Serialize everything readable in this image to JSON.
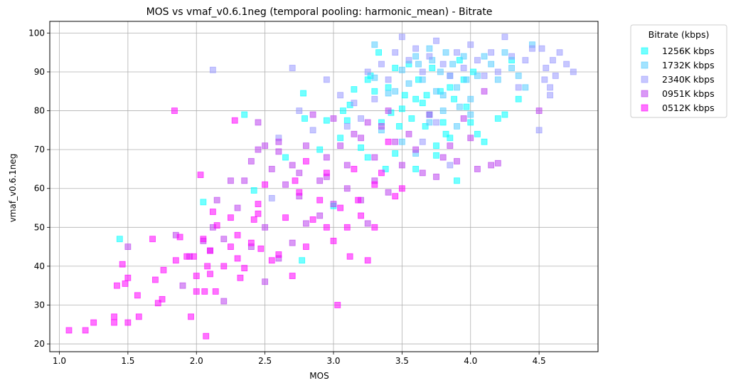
{
  "chart_data": {
    "type": "scatter",
    "title": "MOS vs vmaf_v0.6.1neg (temporal pooling: harmonic_mean) - Bitrate",
    "xlabel": "MOS",
    "ylabel": "vmaf_v0.6.1neg",
    "xlim": [
      0.93,
      4.93
    ],
    "ylim": [
      18,
      103
    ],
    "x_ticks": [
      "1.0",
      "1.5",
      "2.0",
      "2.5",
      "3.0",
      "3.5",
      "4.0",
      "4.5"
    ],
    "y_ticks": [
      "20",
      "30",
      "40",
      "50",
      "60",
      "70",
      "80",
      "90",
      "100"
    ],
    "grid": true,
    "legend_title": "Bitrate (kbps)",
    "legend_position": "outside-top-right",
    "series": [
      {
        "name": "1256K kbps",
        "color": "#00ffff",
        "points": [
          [
            1.44,
            47
          ],
          [
            2.05,
            56.5
          ],
          [
            2.35,
            79
          ],
          [
            2.42,
            59.5
          ],
          [
            2.65,
            68
          ],
          [
            2.78,
            84.5
          ],
          [
            2.79,
            78
          ],
          [
            2.77,
            41.5
          ],
          [
            2.9,
            70
          ],
          [
            2.95,
            77.5
          ],
          [
            3.0,
            55.5
          ],
          [
            3.05,
            73
          ],
          [
            3.07,
            80
          ],
          [
            3.1,
            77.5
          ],
          [
            3.12,
            81.5
          ],
          [
            3.15,
            85.5
          ],
          [
            3.2,
            70.5
          ],
          [
            3.25,
            68
          ],
          [
            3.27,
            89
          ],
          [
            3.3,
            85
          ],
          [
            3.35,
            77
          ],
          [
            3.38,
            65
          ],
          [
            3.4,
            86
          ],
          [
            3.42,
            79.5
          ],
          [
            3.45,
            69
          ],
          [
            3.48,
            76
          ],
          [
            3.5,
            80.5
          ],
          [
            3.52,
            84
          ],
          [
            3.55,
            92
          ],
          [
            3.57,
            78
          ],
          [
            3.6,
            65
          ],
          [
            3.62,
            88
          ],
          [
            3.65,
            82
          ],
          [
            3.67,
            76
          ],
          [
            3.7,
            79
          ],
          [
            3.72,
            91
          ],
          [
            3.75,
            68.5
          ],
          [
            3.78,
            85
          ],
          [
            3.8,
            77
          ],
          [
            3.82,
            74
          ],
          [
            3.85,
            86
          ],
          [
            3.88,
            83
          ],
          [
            3.9,
            62
          ],
          [
            3.92,
            93
          ],
          [
            3.95,
            88
          ],
          [
            3.97,
            81
          ],
          [
            4.0,
            77
          ],
          [
            4.02,
            90
          ],
          [
            4.05,
            74
          ],
          [
            4.1,
            72
          ],
          [
            4.2,
            78
          ],
          [
            4.25,
            79
          ],
          [
            4.3,
            93
          ],
          [
            4.35,
            83
          ],
          [
            3.25,
            88
          ],
          [
            3.33,
            95
          ],
          [
            3.45,
            91
          ],
          [
            3.6,
            83
          ],
          [
            3.68,
            84
          ],
          [
            3.75,
            71
          ],
          [
            3.85,
            73
          ]
        ]
      },
      {
        "name": "1732K kbps",
        "color": "#55ccff",
        "points": [
          [
            3.3,
            88.5
          ],
          [
            3.3,
            97
          ],
          [
            3.4,
            84.5
          ],
          [
            3.45,
            85
          ],
          [
            3.5,
            90.5
          ],
          [
            3.55,
            87
          ],
          [
            3.6,
            94
          ],
          [
            3.62,
            92
          ],
          [
            3.65,
            88
          ],
          [
            3.7,
            96
          ],
          [
            3.72,
            93
          ],
          [
            3.75,
            85
          ],
          [
            3.78,
            90
          ],
          [
            3.8,
            84
          ],
          [
            3.82,
            95
          ],
          [
            3.85,
            89
          ],
          [
            3.87,
            92
          ],
          [
            3.9,
            86
          ],
          [
            3.92,
            81
          ],
          [
            3.95,
            94
          ],
          [
            3.97,
            88
          ],
          [
            4.0,
            83
          ],
          [
            4.05,
            89
          ],
          [
            4.1,
            94
          ],
          [
            4.15,
            92
          ],
          [
            4.2,
            88
          ],
          [
            4.25,
            95
          ],
          [
            4.3,
            91
          ],
          [
            4.35,
            89
          ],
          [
            4.4,
            86
          ],
          [
            4.45,
            97
          ],
          [
            3.35,
            75
          ],
          [
            3.5,
            72
          ],
          [
            3.6,
            69
          ],
          [
            3.7,
            77
          ],
          [
            3.8,
            80
          ],
          [
            3.9,
            76
          ],
          [
            4.0,
            79
          ]
        ]
      },
      {
        "name": "2340K kbps",
        "color": "#9999ff",
        "points": [
          [
            2.12,
            90.5
          ],
          [
            2.55,
            57.5
          ],
          [
            2.6,
            73
          ],
          [
            2.7,
            91
          ],
          [
            2.75,
            80
          ],
          [
            2.85,
            75
          ],
          [
            2.95,
            88
          ],
          [
            3.05,
            84
          ],
          [
            3.1,
            76
          ],
          [
            3.15,
            82
          ],
          [
            3.2,
            78
          ],
          [
            3.25,
            90
          ],
          [
            3.3,
            83
          ],
          [
            3.35,
            92
          ],
          [
            3.4,
            88
          ],
          [
            3.45,
            95
          ],
          [
            3.5,
            99
          ],
          [
            3.55,
            93
          ],
          [
            3.6,
            96
          ],
          [
            3.65,
            90
          ],
          [
            3.7,
            94
          ],
          [
            3.75,
            98
          ],
          [
            3.8,
            92
          ],
          [
            3.85,
            89
          ],
          [
            3.9,
            95
          ],
          [
            3.95,
            91
          ],
          [
            4.0,
            97
          ],
          [
            4.05,
            93
          ],
          [
            4.1,
            89
          ],
          [
            4.15,
            95
          ],
          [
            4.2,
            90
          ],
          [
            4.25,
            99
          ],
          [
            4.3,
            94
          ],
          [
            4.35,
            86
          ],
          [
            4.4,
            93
          ],
          [
            4.45,
            96
          ],
          [
            4.5,
            75
          ],
          [
            4.52,
            96
          ],
          [
            4.55,
            91
          ],
          [
            4.58,
            86
          ],
          [
            4.6,
            93
          ],
          [
            4.62,
            89
          ],
          [
            4.65,
            95
          ],
          [
            4.7,
            92
          ],
          [
            4.75,
            90
          ],
          [
            4.58,
            84
          ],
          [
            4.54,
            88
          ],
          [
            3.65,
            72
          ],
          [
            3.75,
            77
          ],
          [
            3.85,
            66
          ]
        ]
      },
      {
        "name": "0951K kbps",
        "color": "#bb44ee",
        "points": [
          [
            1.5,
            45
          ],
          [
            1.85,
            48
          ],
          [
            1.95,
            42.5
          ],
          [
            2.05,
            46.5
          ],
          [
            2.1,
            44
          ],
          [
            2.12,
            50
          ],
          [
            2.15,
            57
          ],
          [
            2.2,
            47
          ],
          [
            2.25,
            62
          ],
          [
            2.3,
            55
          ],
          [
            2.35,
            62
          ],
          [
            2.4,
            67
          ],
          [
            2.45,
            70
          ],
          [
            2.5,
            71
          ],
          [
            2.55,
            65
          ],
          [
            2.6,
            72
          ],
          [
            2.65,
            61
          ],
          [
            2.7,
            66
          ],
          [
            2.75,
            64
          ],
          [
            2.8,
            71
          ],
          [
            2.85,
            79
          ],
          [
            2.9,
            62
          ],
          [
            2.95,
            68
          ],
          [
            3.0,
            78
          ],
          [
            3.05,
            71
          ],
          [
            3.1,
            66
          ],
          [
            3.15,
            74
          ],
          [
            3.2,
            73
          ],
          [
            3.25,
            77
          ],
          [
            3.3,
            68
          ],
          [
            3.35,
            76
          ],
          [
            3.4,
            80
          ],
          [
            3.45,
            72
          ],
          [
            3.5,
            66
          ],
          [
            3.55,
            74
          ],
          [
            3.6,
            70
          ],
          [
            3.65,
            64
          ],
          [
            3.7,
            79
          ],
          [
            3.75,
            63
          ],
          [
            3.8,
            68
          ],
          [
            3.85,
            71
          ],
          [
            3.9,
            67
          ],
          [
            3.95,
            78
          ],
          [
            4.0,
            73
          ],
          [
            4.05,
            65
          ],
          [
            4.1,
            85
          ],
          [
            4.15,
            66
          ],
          [
            4.2,
            66.5
          ],
          [
            4.5,
            80
          ],
          [
            2.4,
            45
          ],
          [
            2.5,
            50
          ],
          [
            2.6,
            42
          ],
          [
            2.7,
            46
          ],
          [
            2.8,
            51
          ],
          [
            2.9,
            53
          ],
          [
            3.0,
            56
          ],
          [
            3.1,
            60
          ],
          [
            3.2,
            57
          ],
          [
            3.3,
            62
          ],
          [
            3.4,
            59
          ],
          [
            2.45,
            77
          ],
          [
            2.6,
            69.5
          ],
          [
            2.95,
            63
          ],
          [
            3.25,
            51
          ],
          [
            1.9,
            35
          ],
          [
            2.2,
            31
          ],
          [
            2.5,
            36
          ],
          [
            2.75,
            58
          ]
        ]
      },
      {
        "name": "0512K kbps",
        "color": "#ff00ff",
        "points": [
          [
            1.07,
            23.5
          ],
          [
            1.19,
            23.5
          ],
          [
            1.25,
            25.5
          ],
          [
            1.4,
            25.5
          ],
          [
            1.4,
            27
          ],
          [
            1.42,
            35
          ],
          [
            1.46,
            40.5
          ],
          [
            1.48,
            35.5
          ],
          [
            1.5,
            25.5
          ],
          [
            1.5,
            37
          ],
          [
            1.57,
            32.5
          ],
          [
            1.58,
            27
          ],
          [
            1.68,
            47
          ],
          [
            1.7,
            36.5
          ],
          [
            1.72,
            30.5
          ],
          [
            1.75,
            31.5
          ],
          [
            1.76,
            39
          ],
          [
            1.84,
            80
          ],
          [
            1.85,
            41.5
          ],
          [
            1.88,
            47.5
          ],
          [
            1.93,
            42.5
          ],
          [
            1.96,
            27
          ],
          [
            1.98,
            42.5
          ],
          [
            2.0,
            37.5
          ],
          [
            2.0,
            33.5
          ],
          [
            2.03,
            63.5
          ],
          [
            2.05,
            47
          ],
          [
            2.06,
            33.5
          ],
          [
            2.07,
            22
          ],
          [
            2.08,
            40
          ],
          [
            2.1,
            44
          ],
          [
            2.1,
            38
          ],
          [
            2.12,
            54
          ],
          [
            2.14,
            33.5
          ],
          [
            2.15,
            50.5
          ],
          [
            2.2,
            40
          ],
          [
            2.25,
            45
          ],
          [
            2.28,
            77.5
          ],
          [
            2.3,
            48
          ],
          [
            2.3,
            42
          ],
          [
            2.32,
            37
          ],
          [
            2.35,
            39.5
          ],
          [
            2.4,
            46
          ],
          [
            2.42,
            52
          ],
          [
            2.45,
            56
          ],
          [
            2.47,
            44.5
          ],
          [
            2.5,
            61
          ],
          [
            2.55,
            41.5
          ],
          [
            2.6,
            43
          ],
          [
            2.65,
            52.5
          ],
          [
            2.7,
            37.5
          ],
          [
            2.72,
            62
          ],
          [
            2.75,
            59
          ],
          [
            2.8,
            45
          ],
          [
            2.85,
            52
          ],
          [
            2.9,
            57
          ],
          [
            2.95,
            50
          ],
          [
            3.0,
            46.5
          ],
          [
            3.03,
            30
          ],
          [
            3.05,
            55
          ],
          [
            3.1,
            50
          ],
          [
            3.12,
            42.5
          ],
          [
            3.18,
            57
          ],
          [
            3.2,
            53
          ],
          [
            3.25,
            41.5
          ],
          [
            3.3,
            50
          ],
          [
            3.35,
            64
          ],
          [
            3.4,
            72
          ],
          [
            3.45,
            58
          ],
          [
            3.5,
            60
          ],
          [
            2.25,
            52.5
          ],
          [
            2.45,
            53.5
          ],
          [
            2.8,
            67
          ],
          [
            2.95,
            64
          ],
          [
            3.15,
            65
          ],
          [
            3.3,
            61
          ]
        ]
      }
    ]
  }
}
